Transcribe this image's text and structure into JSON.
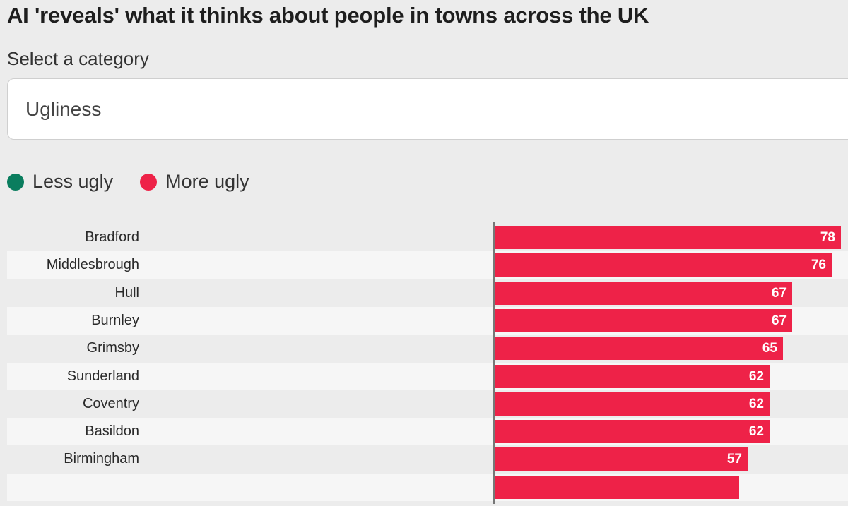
{
  "header": {
    "title": "AI 'reveals' what it thinks about people in towns across the UK"
  },
  "category_select": {
    "label": "Select a category",
    "value": "Ugliness"
  },
  "legend": {
    "items": [
      {
        "label": "Less ugly",
        "color": "#0a7d5e"
      },
      {
        "label": "More ugly",
        "color": "#ee2248"
      }
    ]
  },
  "colors": {
    "background": "#ececec",
    "row_alt": "#f6f6f6",
    "bar": "#ee2248",
    "less": "#0a7d5e"
  },
  "chart_data": {
    "type": "bar",
    "orientation": "horizontal",
    "title": "AI 'reveals' what it thinks about people in towns across the UK",
    "category": "Ugliness",
    "legend": [
      "Less ugly",
      "More ugly"
    ],
    "categories": [
      "Bradford",
      "Middlesbrough",
      "Hull",
      "Burnley",
      "Grimsby",
      "Sunderland",
      "Coventry",
      "Basildon",
      "Birmingham"
    ],
    "values": [
      78,
      76,
      67,
      67,
      65,
      62,
      62,
      62,
      57
    ],
    "xlabel": "",
    "ylabel": "",
    "data_labels": true,
    "grid": false,
    "note": "A 10th bar is partially visible at the bottom edge (cut off, value not shown)"
  }
}
